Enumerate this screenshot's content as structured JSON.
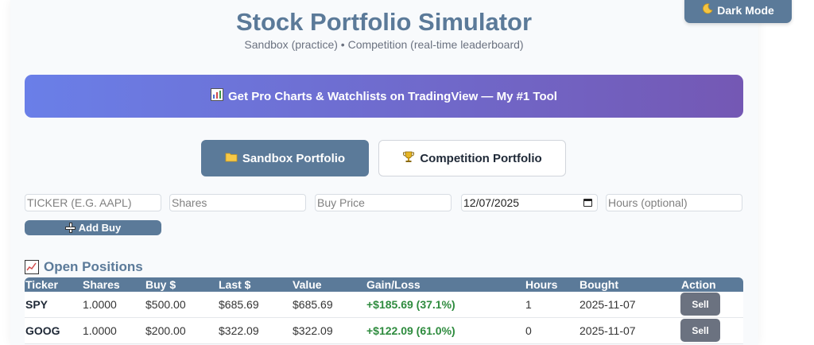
{
  "header": {
    "title": "Stock Portfolio Simulator",
    "subtitle": "Sandbox (practice) • Competition (real-time leaderboard)",
    "dark_mode_icon": "moon-icon",
    "dark_mode_label": "Dark Mode"
  },
  "banner": {
    "icon": "bar-chart-icon",
    "label": "Get Pro Charts & Watchlists on TradingView — My #1 Tool"
  },
  "tabs": [
    {
      "icon": "folder-icon",
      "label": "Sandbox Portfolio",
      "active": true
    },
    {
      "icon": "trophy-icon",
      "label": "Competition Portfolio",
      "active": false
    }
  ],
  "form": {
    "ticker_placeholder": "TICKER (E.G. AAPL)",
    "shares_placeholder": "Shares",
    "price_placeholder": "Buy Price",
    "date_value": "12/07/2025",
    "hours_placeholder": "Hours (optional)",
    "add_buy_label": "Add Buy"
  },
  "positions": {
    "title": "Open Positions",
    "icon": "chart-increasing-icon",
    "columns": [
      "Ticker",
      "Shares",
      "Buy $",
      "Last $",
      "Value",
      "Gain/Loss",
      "Hours",
      "Bought",
      "Action"
    ],
    "rows": [
      {
        "ticker": "SPY",
        "shares": "1.0000",
        "buy": "$500.00",
        "last": "$685.69",
        "value": "$685.69",
        "gain": "+$185.69 (37.1%)",
        "hours": "1",
        "bought": "2025-11-07",
        "action": "Sell"
      },
      {
        "ticker": "GOOG",
        "shares": "1.0000",
        "buy": "$200.00",
        "last": "$322.09",
        "value": "$322.09",
        "gain": "+$122.09 (61.0%)",
        "hours": "0",
        "bought": "2025-11-07",
        "action": "Sell"
      }
    ]
  },
  "colors": {
    "accent": "#5b7a99",
    "gain": "#2e8b3e",
    "banner_start": "#6a7fe8",
    "banner_end": "#7458b4"
  }
}
